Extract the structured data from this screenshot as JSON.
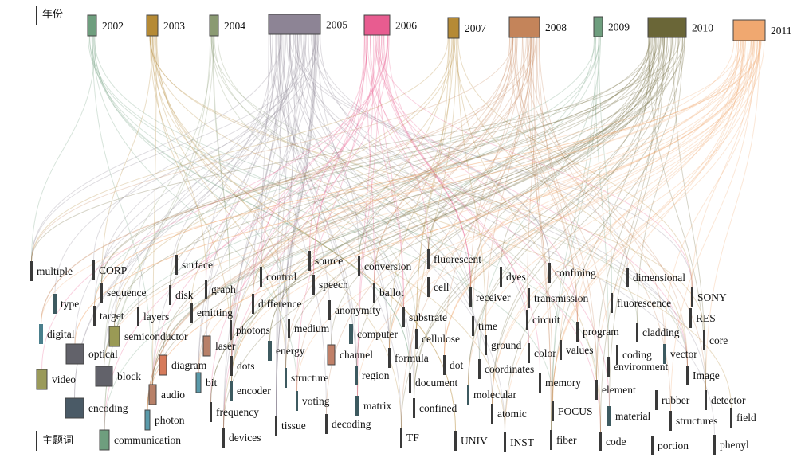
{
  "axes": {
    "top_label": "年份",
    "bottom_label": "主题词"
  },
  "years": [
    {
      "label": "2002",
      "color": "#6e9e7e"
    },
    {
      "label": "2003",
      "color": "#b58a35"
    },
    {
      "label": "2004",
      "color": "#8a9a72"
    },
    {
      "label": "2005",
      "color": "#8d8495"
    },
    {
      "label": "2006",
      "color": "#e85c90"
    },
    {
      "label": "2007",
      "color": "#b58a35"
    },
    {
      "label": "2008",
      "color": "#c4845a"
    },
    {
      "label": "2009",
      "color": "#6e9e7e"
    },
    {
      "label": "2010",
      "color": "#6a6637"
    },
    {
      "label": "2011",
      "color": "#f0a870"
    }
  ],
  "colors": {
    "dark": "#3a3a3a",
    "teal": "#3d5a60",
    "border": "#444444"
  },
  "topics": [
    {
      "label": "multiple",
      "color": "#3a3a3a"
    },
    {
      "label": "CORP",
      "color": "#3a3a3a"
    },
    {
      "label": "surface",
      "color": "#3a3a3a"
    },
    {
      "label": "source",
      "color": "#3a3a3a"
    },
    {
      "label": "conversion",
      "color": "#3a3a3a"
    },
    {
      "label": "fluorescent",
      "color": "#3a3a3a"
    },
    {
      "label": "control",
      "color": "#3a3a3a"
    },
    {
      "label": "speech",
      "color": "#3a3a3a"
    },
    {
      "label": "dyes",
      "color": "#3a3a3a"
    },
    {
      "label": "confining",
      "color": "#3a3a3a"
    },
    {
      "label": "dimensional",
      "color": "#3a3a3a"
    },
    {
      "label": "sequence",
      "color": "#3a3a3a"
    },
    {
      "label": "disk",
      "color": "#3a3a3a"
    },
    {
      "label": "graph",
      "color": "#3a3a3a"
    },
    {
      "label": "cell",
      "color": "#3a3a3a"
    },
    {
      "label": "ballot",
      "color": "#3a3a3a"
    },
    {
      "label": "type",
      "color": "#3d5a60"
    },
    {
      "label": "difference",
      "color": "#3a3a3a"
    },
    {
      "label": "receiver",
      "color": "#3a3a3a"
    },
    {
      "label": "transmission",
      "color": "#3a3a3a"
    },
    {
      "label": "fluorescence",
      "color": "#3a3a3a"
    },
    {
      "label": "SONY",
      "color": "#3a3a3a"
    },
    {
      "label": "target",
      "color": "#3a3a3a"
    },
    {
      "label": "layers",
      "color": "#3a3a3a"
    },
    {
      "label": "emitting",
      "color": "#3a3a3a"
    },
    {
      "label": "anonymity",
      "color": "#3a3a3a"
    },
    {
      "label": "substrate",
      "color": "#3a3a3a"
    },
    {
      "label": "circuit",
      "color": "#3a3a3a"
    },
    {
      "label": "RES",
      "color": "#3a3a3a"
    },
    {
      "label": "time",
      "color": "#3a3a3a"
    },
    {
      "label": "digital",
      "color": "#4a7f8c"
    },
    {
      "label": "semiconductor",
      "color": "#9a9a55"
    },
    {
      "label": "photons",
      "color": "#3a3a3a"
    },
    {
      "label": "medium",
      "color": "#3a3a3a"
    },
    {
      "label": "computer",
      "color": "#3d5a60"
    },
    {
      "label": "program",
      "color": "#3a3a3a"
    },
    {
      "label": "cladding",
      "color": "#3a3a3a"
    },
    {
      "label": "cellulose",
      "color": "#3a3a3a"
    },
    {
      "label": "core",
      "color": "#3a3a3a"
    },
    {
      "label": "ground",
      "color": "#3a3a3a"
    },
    {
      "label": "laser",
      "color": "#b88068"
    },
    {
      "label": "optical",
      "color": "#62626a"
    },
    {
      "label": "energy",
      "color": "#3d5a60"
    },
    {
      "label": "channel",
      "color": "#c08068"
    },
    {
      "label": "formula",
      "color": "#3a3a3a"
    },
    {
      "label": "color",
      "color": "#3a3a3a"
    },
    {
      "label": "values",
      "color": "#3a3a3a"
    },
    {
      "label": "coding",
      "color": "#3a3a3a"
    },
    {
      "label": "vector",
      "color": "#3d5a60"
    },
    {
      "label": "diagram",
      "color": "#d67a5a"
    },
    {
      "label": "dots",
      "color": "#3a3a3a"
    },
    {
      "label": "dot",
      "color": "#3a3a3a"
    },
    {
      "label": "coordinates",
      "color": "#3a3a3a"
    },
    {
      "label": "environment",
      "color": "#3a3a3a"
    },
    {
      "label": "video",
      "color": "#9a9a5a"
    },
    {
      "label": "block",
      "color": "#62626a"
    },
    {
      "label": "bit",
      "color": "#5a9aaa"
    },
    {
      "label": "structure",
      "color": "#3d5a60"
    },
    {
      "label": "region",
      "color": "#3d5a60"
    },
    {
      "label": "Image",
      "color": "#3a3a3a"
    },
    {
      "label": "memory",
      "color": "#3a3a3a"
    },
    {
      "label": "document",
      "color": "#3a3a3a"
    },
    {
      "label": "element",
      "color": "#3a3a3a"
    },
    {
      "label": "encoder",
      "color": "#3d5a60"
    },
    {
      "label": "molecular",
      "color": "#3d5a60"
    },
    {
      "label": "audio",
      "color": "#b88068"
    },
    {
      "label": "encoding",
      "color": "#4a5a66"
    },
    {
      "label": "voting",
      "color": "#3d5a60"
    },
    {
      "label": "matrix",
      "color": "#3d5a60"
    },
    {
      "label": "confined",
      "color": "#3a3a3a"
    },
    {
      "label": "rubber",
      "color": "#3a3a3a"
    },
    {
      "label": "detector",
      "color": "#3a3a3a"
    },
    {
      "label": "frequency",
      "color": "#3a3a3a"
    },
    {
      "label": "FOCUS",
      "color": "#3a3a3a"
    },
    {
      "label": "material",
      "color": "#3d5a60"
    },
    {
      "label": "field",
      "color": "#3a3a3a"
    },
    {
      "label": "structures",
      "color": "#3a3a3a"
    },
    {
      "label": "atomic",
      "color": "#3a3a3a"
    },
    {
      "label": "photon",
      "color": "#5a9aaa"
    },
    {
      "label": "tissue",
      "color": "#3a3a3a"
    },
    {
      "label": "decoding",
      "color": "#3a3a3a"
    },
    {
      "label": "communication",
      "color": "#6e9e7e"
    },
    {
      "label": "TF",
      "color": "#3a3a3a"
    },
    {
      "label": "UNIV",
      "color": "#3a3a3a"
    },
    {
      "label": "INST",
      "color": "#3a3a3a"
    },
    {
      "label": "fiber",
      "color": "#3a3a3a"
    },
    {
      "label": "code",
      "color": "#3a3a3a"
    },
    {
      "label": "portion",
      "color": "#3a3a3a"
    },
    {
      "label": "phenyl",
      "color": "#3a3a3a"
    },
    {
      "label": "devices",
      "color": "#3a3a3a"
    }
  ]
}
